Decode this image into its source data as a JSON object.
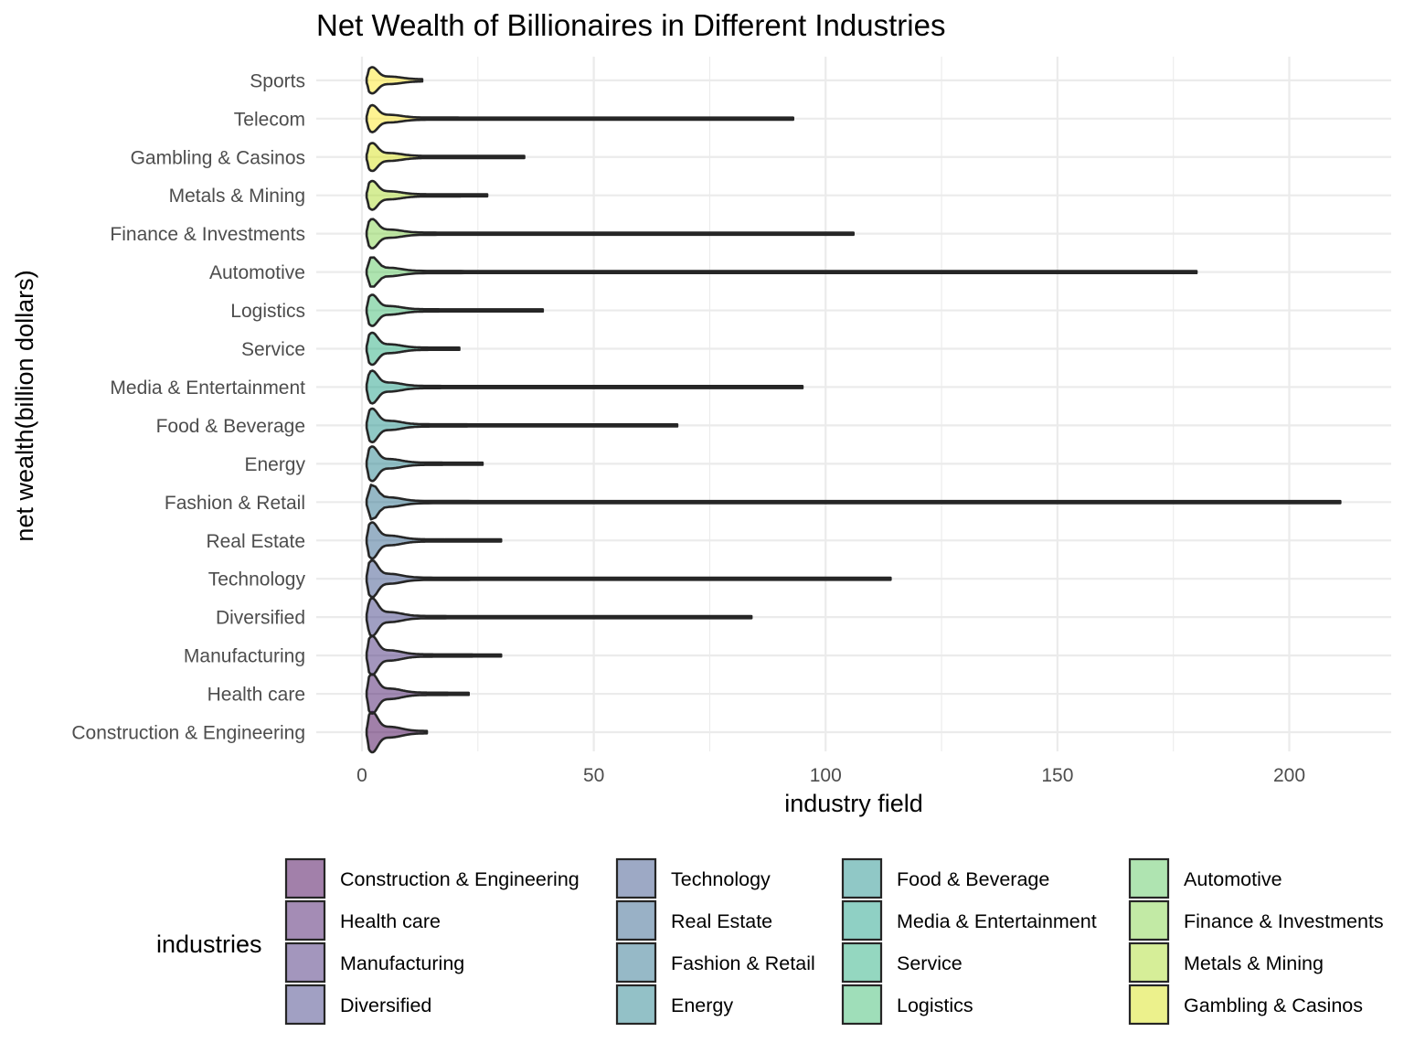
{
  "chart_data": {
    "type": "violin",
    "title": "Net Wealth of Billionaires in Different Industries",
    "xlabel": "industry field",
    "ylabel": "net wealth(billion dollars)",
    "xlim": [
      -10,
      221
    ],
    "x_ticks": [
      0,
      50,
      100,
      150,
      200
    ],
    "grid": true,
    "legend": {
      "title": "industries",
      "position": "bottom",
      "columns": 4
    },
    "series": [
      {
        "name": "Construction & Engineering",
        "min": 1,
        "max": 14,
        "color": "#440154"
      },
      {
        "name": "Health care",
        "min": 1,
        "max": 23,
        "color": "#48186a"
      },
      {
        "name": "Manufacturing",
        "min": 1,
        "max": 30,
        "color": "#472d7b"
      },
      {
        "name": "Diversified",
        "min": 1,
        "max": 84,
        "color": "#424086"
      },
      {
        "name": "Technology",
        "min": 1,
        "max": 114,
        "color": "#3b528b"
      },
      {
        "name": "Real Estate",
        "min": 1,
        "max": 30,
        "color": "#33638d"
      },
      {
        "name": "Fashion & Retail",
        "min": 1,
        "max": 211,
        "color": "#2c728e"
      },
      {
        "name": "Energy",
        "min": 1,
        "max": 26,
        "color": "#26828e"
      },
      {
        "name": "Food & Beverage",
        "min": 1,
        "max": 68,
        "color": "#21918c"
      },
      {
        "name": "Media & Entertainment",
        "min": 1,
        "max": 95,
        "color": "#1fa088"
      },
      {
        "name": "Service",
        "min": 1,
        "max": 21,
        "color": "#28ae80"
      },
      {
        "name": "Logistics",
        "min": 1,
        "max": 39,
        "color": "#3fbc73"
      },
      {
        "name": "Automotive",
        "min": 1,
        "max": 180,
        "color": "#5ec962"
      },
      {
        "name": "Finance & Investments",
        "min": 1,
        "max": 106,
        "color": "#84d44b"
      },
      {
        "name": "Metals & Mining",
        "min": 1,
        "max": 27,
        "color": "#addc30"
      },
      {
        "name": "Gambling & Casinos",
        "min": 1,
        "max": 35,
        "color": "#d8e219"
      },
      {
        "name": "Telecom",
        "min": 1,
        "max": 93,
        "color": "#fde725"
      },
      {
        "name": "Sports",
        "min": 1,
        "max": 13,
        "color": "#fde725"
      }
    ]
  }
}
